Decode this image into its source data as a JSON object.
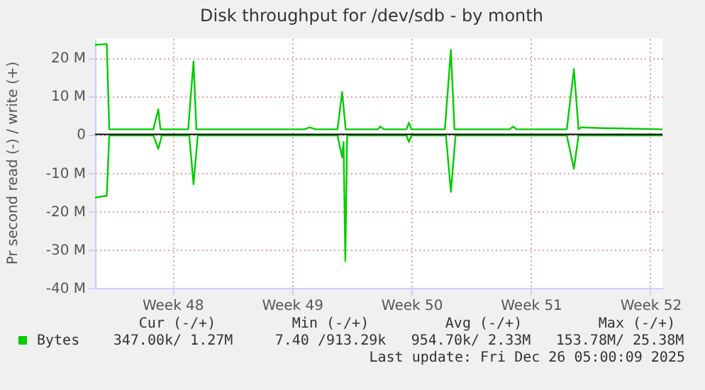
{
  "chart_data": {
    "type": "line",
    "title": "Disk throughput for /dev/sdb - by month",
    "ylabel": "Pr second read (-) / write (+)",
    "xlim": [
      "2025-11-22T23:00",
      "2025-12-26T05:00"
    ],
    "xticks": [
      {
        "value": "2025-11-27T12:00",
        "label": "Week 48"
      },
      {
        "value": "2025-12-04T12:00",
        "label": "Week 49"
      },
      {
        "value": "2025-12-11T12:00",
        "label": "Week 50"
      },
      {
        "value": "2025-12-18T12:00",
        "label": "Week 51"
      },
      {
        "value": "2025-12-25T12:00",
        "label": "Week 52"
      }
    ],
    "ylim": [
      -40,
      25
    ],
    "yticks": [
      {
        "value": -40,
        "label": "-40 M"
      },
      {
        "value": -30,
        "label": "-30 M"
      },
      {
        "value": -20,
        "label": "-20 M"
      },
      {
        "value": -10,
        "label": "-10 M"
      },
      0,
      {
        "value": 10,
        "label": "10 M"
      },
      {
        "value": 20,
        "label": "20 M"
      }
    ],
    "series": [
      {
        "name": "Bytes",
        "color": "#00cc00",
        "x": [
          "2025-11-22T23:00",
          "2025-11-23T15:30",
          "2025-11-23T19:00",
          "2025-11-26T09:00",
          "2025-11-26T16:00",
          "2025-11-26T19:00",
          "2025-11-28T10:00",
          "2025-11-28T17:30",
          "2025-11-28T21:30",
          "2025-12-05T05:00",
          "2025-12-05T13:00",
          "2025-12-05T21:30",
          "2025-12-07T04:00",
          "2025-12-07T10:30",
          "2025-12-07T15:30",
          "2025-12-09T13:00",
          "2025-12-09T16:00",
          "2025-12-09T21:30",
          "2025-12-11T05:00",
          "2025-12-11T08:30",
          "2025-12-11T12:00",
          "2025-12-13T11:00",
          "2025-12-13T19:30",
          "2025-12-14T00:30",
          "2025-12-17T06:00",
          "2025-12-17T11:00",
          "2025-12-17T16:00",
          "2025-12-20T14:30",
          "2025-12-21T00:30",
          "2025-12-21T07:00",
          "2025-12-21T10:30",
          "2025-12-22T17:00",
          "2025-12-24T02:30",
          "2025-12-26T05:00"
        ],
        "values": [
          23.3,
          23.5,
          1.3,
          1.3,
          6.5,
          1.3,
          1.3,
          19,
          1.3,
          1.3,
          1.8,
          1.3,
          1.3,
          11,
          1.3,
          1.3,
          2.0,
          1.3,
          1.3,
          3.0,
          1.3,
          1.3,
          22,
          1.3,
          1.3,
          2.0,
          1.3,
          1.3,
          17,
          1.3,
          1.8,
          1.6,
          1.5,
          1.3
        ]
      },
      {
        "color": "#00cc00",
        "x": [
          "2025-11-22T23:00",
          "2025-11-23T15:30",
          "2025-11-23T19:00",
          "2025-11-26T09:00",
          "2025-11-26T16:00",
          "2025-11-26T21:00",
          "2025-11-28T11:30",
          "2025-11-28T17:30",
          "2025-11-28T23:30",
          "2025-12-07T04:00",
          "2025-12-07T10:30",
          "2025-12-07T12:30",
          "2025-12-07T15:00",
          "2025-12-07T17:30",
          "2025-12-11T05:00",
          "2025-12-11T08:30",
          "2025-12-11T12:00",
          "2025-12-13T12:30",
          "2025-12-13T19:30",
          "2025-12-14T02:00",
          "2025-12-20T14:30",
          "2025-12-21T00:30",
          "2025-12-21T07:00",
          "2025-12-26T05:00"
        ],
        "values": [
          -16.5,
          -16,
          -0.3,
          -0.3,
          -3.8,
          -0.3,
          -0.3,
          -13,
          -0.3,
          -0.3,
          -6,
          -2,
          -33,
          -0.3,
          -0.3,
          -2.0,
          -0.3,
          -0.3,
          -15,
          -0.3,
          -0.3,
          -9,
          -0.3,
          -0.3
        ]
      }
    ],
    "ref_lines": [
      {
        "axis": "y",
        "value": 0,
        "color": "#000000"
      }
    ],
    "grid": true,
    "legend": "bottom left",
    "annotations": [
      "Cur (-/+)",
      "Min (-/+)",
      "Avg (-/+)",
      "Max (-/+)",
      "347.00k/  1.27M",
      "7.40 /913.29k",
      "954.70k/  2.33M",
      "153.78M/ 25.38M",
      "Last update: Fri Dec 26 05:00:09 2025"
    ]
  }
}
